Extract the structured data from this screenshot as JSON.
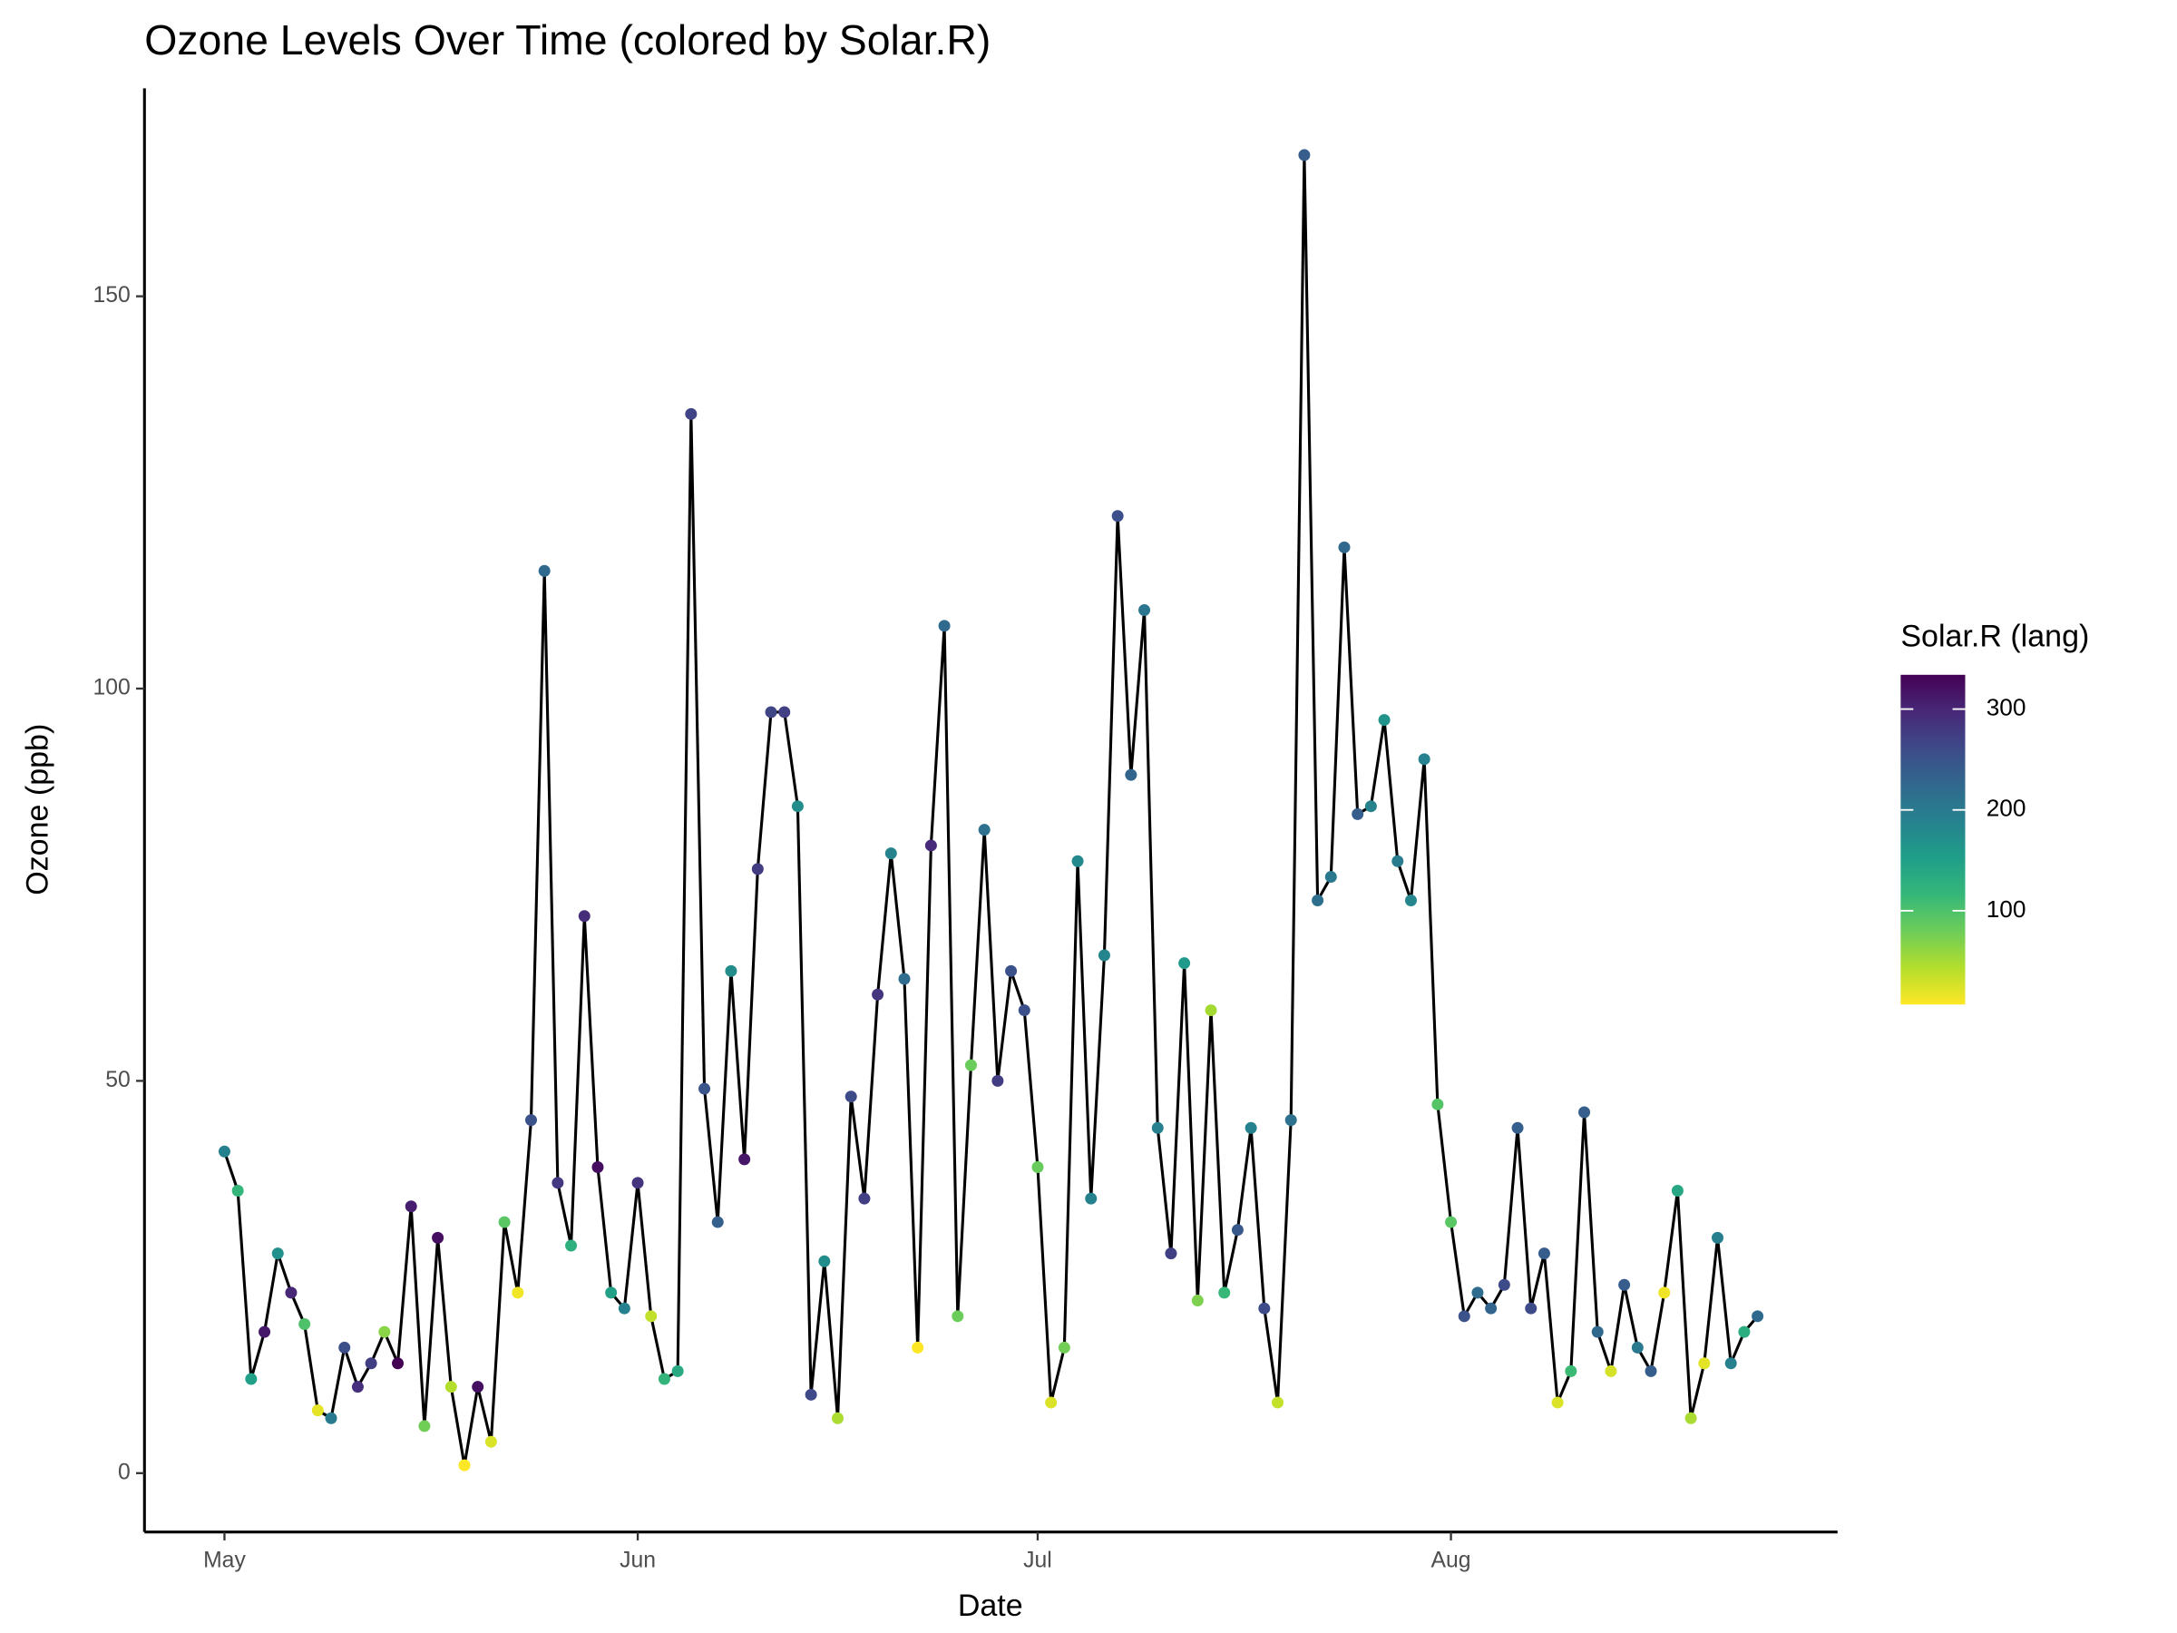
{
  "chart_data": {
    "type": "scatter",
    "title": "Ozone Levels Over Time (colored by Solar.R)",
    "xlabel": "Date",
    "ylabel": "Ozone (ppb)",
    "x": [
      "05-01",
      "05-02",
      "05-03",
      "05-04",
      "05-05",
      "05-06",
      "05-07",
      "05-08",
      "05-09",
      "05-10",
      "05-11",
      "05-12",
      "05-13",
      "05-14",
      "05-15",
      "05-16",
      "05-17",
      "05-18",
      "05-19",
      "05-20",
      "05-21",
      "05-22",
      "05-23",
      "05-24",
      "05-25",
      "05-26",
      "05-27",
      "05-28",
      "05-29",
      "05-30",
      "05-31",
      "06-01",
      "06-02",
      "06-03",
      "06-04",
      "06-05",
      "06-06",
      "06-07",
      "06-08",
      "06-09",
      "06-10",
      "06-11",
      "06-12",
      "06-13",
      "06-14",
      "06-15",
      "06-16",
      "06-17",
      "06-18",
      "06-19",
      "06-20",
      "06-21",
      "06-22",
      "06-23",
      "06-24",
      "06-25",
      "06-26",
      "06-27",
      "06-28",
      "06-29",
      "06-30",
      "07-01",
      "07-02",
      "07-03",
      "07-04",
      "07-05",
      "07-06",
      "07-07",
      "07-08",
      "07-09",
      "07-10",
      "07-11",
      "07-12",
      "07-13",
      "07-14",
      "07-15",
      "07-16",
      "07-17",
      "07-18",
      "07-19",
      "07-20",
      "07-21",
      "07-22",
      "07-23",
      "07-24",
      "07-25",
      "07-26",
      "07-27",
      "07-28",
      "07-29",
      "07-30",
      "07-31",
      "08-01",
      "08-02",
      "08-03",
      "08-04",
      "08-05",
      "08-06",
      "08-07",
      "08-08",
      "08-09",
      "08-10",
      "08-11",
      "08-12",
      "08-13",
      "08-14",
      "08-15",
      "08-16",
      "08-17",
      "08-18",
      "08-19",
      "08-20",
      "08-21",
      "08-22",
      "08-23",
      "08-24"
    ],
    "values": [
      41,
      36,
      12,
      18,
      28,
      23,
      19,
      8,
      7,
      16,
      11,
      14,
      18,
      14,
      34,
      6,
      30,
      11,
      1,
      11,
      4,
      32,
      23,
      45,
      115,
      37,
      29,
      71,
      39,
      23,
      21,
      37,
      20,
      12,
      13,
      135,
      49,
      32,
      64,
      40,
      77,
      97,
      97,
      85,
      10,
      27,
      7,
      48,
      35,
      61,
      79,
      63,
      16,
      80,
      108,
      20,
      52,
      82,
      50,
      64,
      59,
      39,
      9,
      16,
      78,
      35,
      66,
      122,
      89,
      110,
      44,
      28,
      65,
      22,
      59,
      23,
      31,
      44,
      21,
      9,
      45,
      168,
      73,
      76,
      118,
      84,
      85,
      96,
      78,
      73,
      91,
      47,
      32,
      20,
      23,
      21,
      24,
      44,
      21,
      28,
      9,
      13,
      46,
      18,
      13,
      24,
      16,
      13,
      23,
      36,
      7,
      14,
      30,
      14,
      18,
      20
    ],
    "color_values": [
      190,
      118,
      149,
      313,
      170,
      299,
      99,
      19,
      200,
      256,
      290,
      274,
      65,
      334,
      307,
      78,
      322,
      44,
      8,
      320,
      25,
      92,
      13,
      252,
      223,
      279,
      127,
      291,
      323,
      148,
      191,
      284,
      37,
      120,
      137,
      269,
      248,
      236,
      175,
      314,
      276,
      267,
      272,
      175,
      264,
      175,
      48,
      260,
      274,
      285,
      187,
      220,
      7,
      294,
      223,
      81,
      82,
      213,
      275,
      253,
      254,
      83,
      24,
      77,
      180,
      190,
      185,
      255,
      229,
      207,
      192,
      273,
      157,
      71,
      51,
      115,
      244,
      190,
      259,
      36,
      212,
      238,
      215,
      203,
      225,
      237,
      188,
      167,
      197,
      183,
      189,
      95,
      92,
      252,
      220,
      230,
      259,
      236,
      259,
      238,
      24,
      112,
      237,
      224,
      27,
      238,
      201,
      238,
      14,
      139,
      49,
      20,
      193,
      191,
      131,
      223
    ],
    "xlim": [
      "04-25",
      "08-30"
    ],
    "xticks": [
      {
        "value": "05-01",
        "label": "May"
      },
      {
        "value": "06-01",
        "label": "Jun"
      },
      {
        "value": "07-01",
        "label": "Jul"
      },
      {
        "value": "08-01",
        "label": "Aug"
      }
    ],
    "ylim": [
      -7.5,
      176.5
    ],
    "yticks": [
      0,
      50,
      100,
      150
    ],
    "line_color": "#000000",
    "colorbar": {
      "title": "Solar.R (lang)",
      "limits": [
        7,
        334
      ],
      "ticks": [
        100,
        200,
        300
      ],
      "colors": [
        "#440154",
        "#482878",
        "#3E4A89",
        "#31688E",
        "#26828E",
        "#1F9E89",
        "#35B779",
        "#6DCD59",
        "#B4DE2C",
        "#FDE725"
      ]
    }
  }
}
